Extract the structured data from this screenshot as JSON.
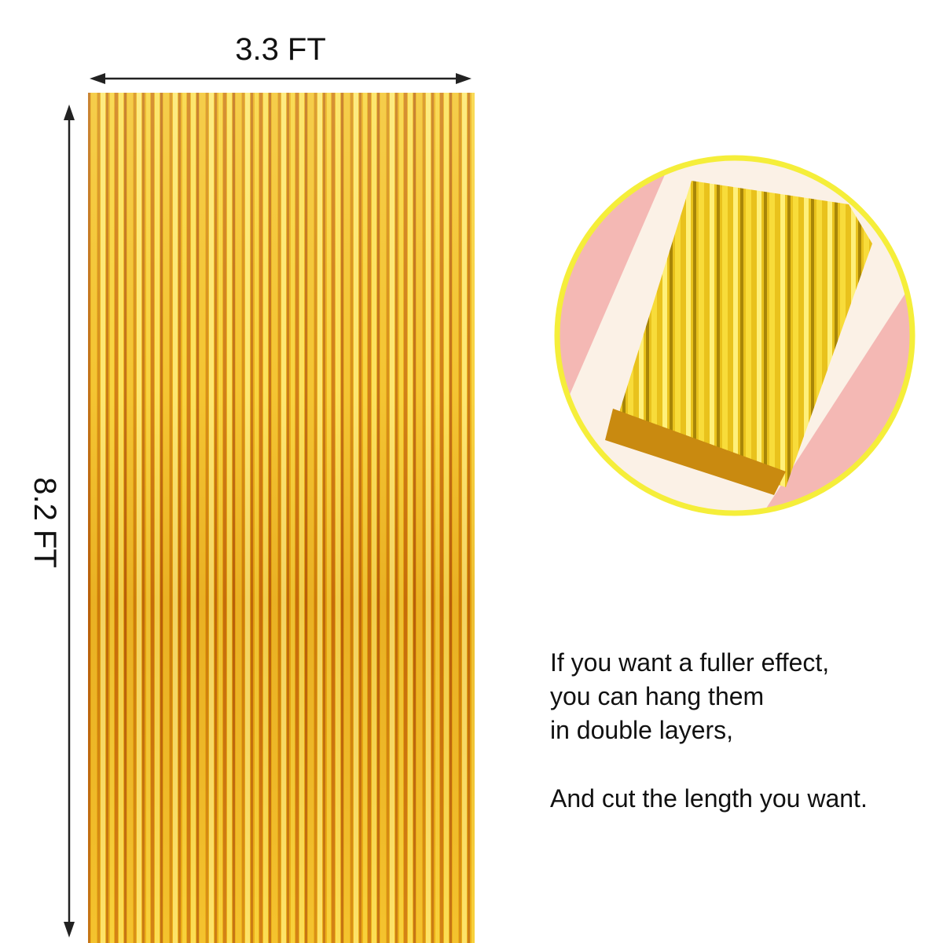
{
  "dimensions": {
    "width": "3.3 FT",
    "height": "8.2 FT"
  },
  "note": {
    "lines": [
      "If you want a fuller effect,",
      "you can hang them",
      "in double layers,",
      "And cut the length you want."
    ]
  }
}
